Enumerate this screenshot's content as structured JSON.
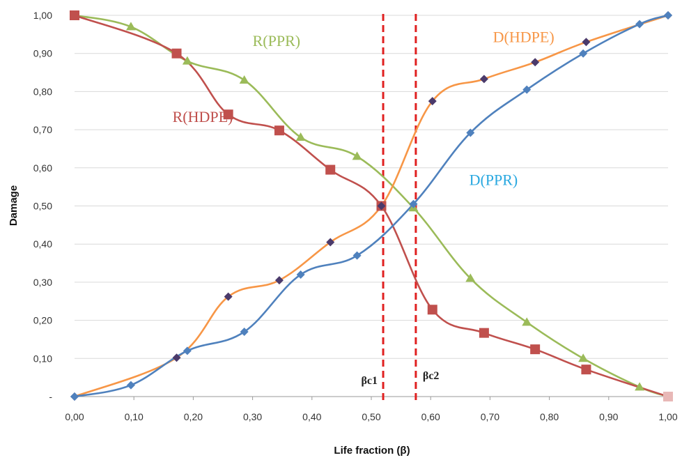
{
  "chart_data": {
    "type": "line",
    "xlabel": "Life fraction (β)",
    "ylabel": "Damage",
    "xlim": [
      0,
      1
    ],
    "ylim": [
      0,
      1
    ],
    "x_ticks": [
      "0,00",
      "0,10",
      "0,20",
      "0,30",
      "0,40",
      "0,50",
      "0,60",
      "0,70",
      "0,80",
      "0,90",
      "1,00"
    ],
    "y_ticks": [
      "-",
      "0,10",
      "0,20",
      "0,30",
      "0,40",
      "0,50",
      "0,60",
      "0,70",
      "0,80",
      "0,90",
      "1,00"
    ],
    "grid": "horizontal",
    "legend": "none",
    "series": [
      {
        "name": "R(PPR)",
        "color": "#9bbb59",
        "marker": "triangle",
        "x": [
          0.0,
          0.095,
          0.19,
          0.286,
          0.381,
          0.476,
          0.571,
          0.667,
          0.762,
          0.857,
          0.952,
          1.0
        ],
        "y": [
          1.0,
          0.97,
          0.88,
          0.83,
          0.68,
          0.63,
          0.495,
          0.31,
          0.195,
          0.1,
          0.025,
          0.0
        ]
      },
      {
        "name": "R(HDPE)",
        "color": "#c0504d",
        "marker": "square",
        "x": [
          0.0,
          0.172,
          0.259,
          0.345,
          0.431,
          0.517,
          0.603,
          0.69,
          0.776,
          0.862,
          1.0
        ],
        "y": [
          1.0,
          0.9,
          0.74,
          0.698,
          0.595,
          0.5,
          0.228,
          0.167,
          0.124,
          0.071,
          0.0
        ]
      },
      {
        "name": "D(HDPE)",
        "color": "#f79646",
        "marker": "diamond",
        "marker_color": "#4b3a6b",
        "x": [
          0.0,
          0.172,
          0.259,
          0.345,
          0.431,
          0.517,
          0.603,
          0.69,
          0.776,
          0.862,
          1.0
        ],
        "y": [
          0.0,
          0.102,
          0.262,
          0.305,
          0.405,
          0.5,
          0.775,
          0.833,
          0.877,
          0.93,
          1.0
        ]
      },
      {
        "name": "D(PPR)",
        "color": "#4f81bd",
        "marker": "diamond",
        "x": [
          0.0,
          0.095,
          0.19,
          0.286,
          0.381,
          0.476,
          0.571,
          0.667,
          0.762,
          0.857,
          0.952,
          1.0
        ],
        "y": [
          0.0,
          0.03,
          0.12,
          0.17,
          0.32,
          0.37,
          0.505,
          0.692,
          0.805,
          0.9,
          0.977,
          1.0
        ]
      }
    ],
    "annotations": {
      "critical_lines": [
        {
          "label": "βc1",
          "x": 0.52,
          "color": "#e02020"
        },
        {
          "label": "βc2",
          "x": 0.575,
          "color": "#e02020"
        }
      ],
      "series_labels": [
        {
          "text": "R(PPR)",
          "color": "#9bbb59",
          "x": 0.3,
          "y": 0.92
        },
        {
          "text": "R(HDPE)",
          "color": "#c0504d",
          "x": 0.165,
          "y": 0.72
        },
        {
          "text": "D(HDPE)",
          "color": "#f79646",
          "x": 0.705,
          "y": 0.93
        },
        {
          "text": "D(PPR)",
          "color": "#29a8e0",
          "x": 0.665,
          "y": 0.555
        }
      ]
    }
  }
}
